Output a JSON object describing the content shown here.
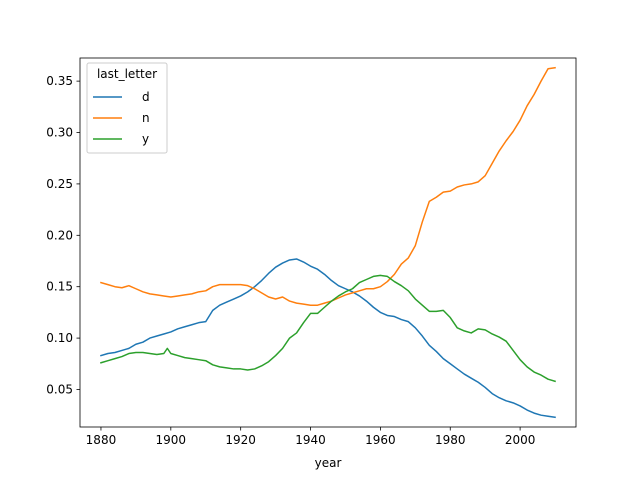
{
  "chart_data": {
    "type": "line",
    "xlabel": "year",
    "ylabel": "",
    "title": "",
    "xlim": [
      1874,
      2016
    ],
    "ylim": [
      0.0135,
      0.3725
    ],
    "x_ticks": [
      1880,
      1900,
      1920,
      1940,
      1960,
      1980,
      2000
    ],
    "x_tick_labels": [
      "1880",
      "1900",
      "1920",
      "1940",
      "1960",
      "1980",
      "2000"
    ],
    "y_ticks": [
      0.05,
      0.1,
      0.15,
      0.2,
      0.25,
      0.3,
      0.35
    ],
    "y_tick_labels": [
      "0.05",
      "0.10",
      "0.15",
      "0.20",
      "0.25",
      "0.30",
      "0.35"
    ],
    "grid": false,
    "legend": {
      "title": "last_letter",
      "placement": "upper-left"
    },
    "series": [
      {
        "name": "d",
        "color": "#1f77b4",
        "x": [
          1880,
          1882,
          1884,
          1886,
          1888,
          1890,
          1892,
          1894,
          1896,
          1898,
          1900,
          1902,
          1904,
          1906,
          1908,
          1910,
          1912,
          1914,
          1916,
          1918,
          1920,
          1922,
          1924,
          1926,
          1928,
          1930,
          1932,
          1934,
          1936,
          1938,
          1940,
          1942,
          1944,
          1946,
          1948,
          1950,
          1952,
          1954,
          1956,
          1958,
          1960,
          1962,
          1964,
          1966,
          1968,
          1970,
          1972,
          1974,
          1976,
          1978,
          1980,
          1982,
          1984,
          1986,
          1988,
          1990,
          1992,
          1994,
          1996,
          1998,
          2000,
          2002,
          2004,
          2006,
          2008,
          2010
        ],
        "y": [
          0.083,
          0.085,
          0.086,
          0.088,
          0.09,
          0.094,
          0.096,
          0.1,
          0.102,
          0.104,
          0.106,
          0.109,
          0.111,
          0.113,
          0.115,
          0.116,
          0.127,
          0.132,
          0.135,
          0.138,
          0.141,
          0.145,
          0.15,
          0.156,
          0.163,
          0.169,
          0.173,
          0.176,
          0.177,
          0.174,
          0.17,
          0.167,
          0.162,
          0.156,
          0.151,
          0.148,
          0.145,
          0.141,
          0.136,
          0.13,
          0.125,
          0.122,
          0.121,
          0.118,
          0.116,
          0.11,
          0.102,
          0.093,
          0.087,
          0.08,
          0.075,
          0.07,
          0.065,
          0.061,
          0.057,
          0.052,
          0.046,
          0.042,
          0.039,
          0.037,
          0.034,
          0.03,
          0.027,
          0.025,
          0.024,
          0.023
        ]
      },
      {
        "name": "n",
        "color": "#ff7f0e",
        "x": [
          1880,
          1882,
          1884,
          1886,
          1888,
          1890,
          1892,
          1894,
          1896,
          1898,
          1900,
          1902,
          1904,
          1906,
          1908,
          1910,
          1912,
          1914,
          1916,
          1918,
          1920,
          1922,
          1924,
          1926,
          1928,
          1930,
          1932,
          1934,
          1936,
          1938,
          1940,
          1942,
          1944,
          1946,
          1948,
          1950,
          1952,
          1954,
          1956,
          1958,
          1960,
          1962,
          1964,
          1966,
          1968,
          1970,
          1972,
          1974,
          1976,
          1978,
          1980,
          1982,
          1984,
          1986,
          1988,
          1990,
          1992,
          1994,
          1996,
          1998,
          2000,
          2002,
          2004,
          2006,
          2008,
          2010
        ],
        "y": [
          0.154,
          0.152,
          0.15,
          0.149,
          0.151,
          0.148,
          0.145,
          0.143,
          0.142,
          0.141,
          0.14,
          0.141,
          0.142,
          0.143,
          0.145,
          0.146,
          0.15,
          0.152,
          0.152,
          0.152,
          0.152,
          0.151,
          0.148,
          0.144,
          0.14,
          0.138,
          0.14,
          0.136,
          0.134,
          0.133,
          0.132,
          0.132,
          0.134,
          0.136,
          0.139,
          0.142,
          0.144,
          0.146,
          0.148,
          0.148,
          0.15,
          0.155,
          0.162,
          0.172,
          0.178,
          0.19,
          0.213,
          0.233,
          0.237,
          0.242,
          0.243,
          0.247,
          0.249,
          0.25,
          0.252,
          0.258,
          0.27,
          0.282,
          0.292,
          0.301,
          0.312,
          0.326,
          0.337,
          0.35,
          0.362,
          0.363
        ]
      },
      {
        "name": "y",
        "color": "#2ca02c",
        "x": [
          1880,
          1882,
          1884,
          1886,
          1888,
          1890,
          1892,
          1894,
          1896,
          1898,
          1899,
          1900,
          1902,
          1904,
          1906,
          1908,
          1910,
          1912,
          1914,
          1916,
          1918,
          1920,
          1922,
          1924,
          1926,
          1928,
          1930,
          1932,
          1934,
          1936,
          1938,
          1940,
          1942,
          1944,
          1946,
          1948,
          1950,
          1952,
          1954,
          1956,
          1958,
          1960,
          1962,
          1964,
          1966,
          1968,
          1970,
          1972,
          1974,
          1976,
          1978,
          1980,
          1982,
          1984,
          1986,
          1988,
          1990,
          1992,
          1994,
          1996,
          1998,
          2000,
          2002,
          2004,
          2006,
          2008,
          2010
        ],
        "y": [
          0.076,
          0.078,
          0.08,
          0.082,
          0.085,
          0.086,
          0.086,
          0.085,
          0.084,
          0.085,
          0.09,
          0.085,
          0.083,
          0.081,
          0.08,
          0.079,
          0.078,
          0.074,
          0.072,
          0.071,
          0.07,
          0.07,
          0.069,
          0.07,
          0.073,
          0.077,
          0.083,
          0.09,
          0.1,
          0.105,
          0.115,
          0.124,
          0.124,
          0.13,
          0.136,
          0.141,
          0.145,
          0.148,
          0.154,
          0.157,
          0.16,
          0.161,
          0.16,
          0.155,
          0.151,
          0.146,
          0.138,
          0.132,
          0.126,
          0.126,
          0.127,
          0.12,
          0.11,
          0.107,
          0.105,
          0.109,
          0.108,
          0.104,
          0.101,
          0.097,
          0.088,
          0.079,
          0.072,
          0.067,
          0.064,
          0.06,
          0.058
        ]
      }
    ]
  }
}
